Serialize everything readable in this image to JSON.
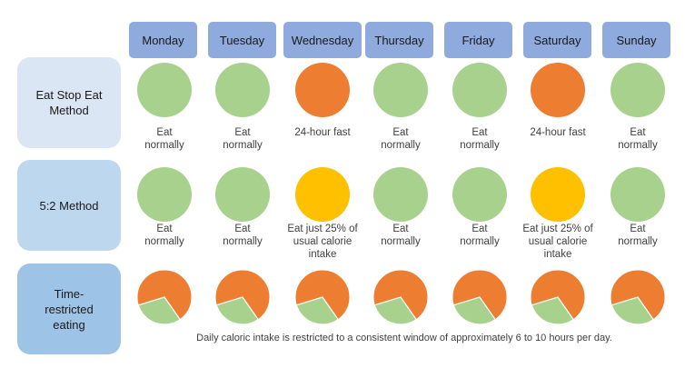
{
  "days": [
    "Monday",
    "Tuesday",
    "Wednesday",
    "Thursday",
    "Friday",
    "Saturday",
    "Sunday"
  ],
  "methods": [
    {
      "name": "Eat Stop Eat Method",
      "color": "#dae6f3"
    },
    {
      "name": "5:2 Method",
      "color": "#bdd7ee"
    },
    {
      "name": "Time-restricted eating",
      "color": "#9dc3e6"
    }
  ],
  "colors": {
    "normal": "#a9d18e",
    "fast": "#ed7d31",
    "reduced": "#ffc000",
    "day_header": "#8faadc"
  },
  "rows": [
    {
      "labels": [
        "Eat normally",
        "Eat normally",
        "24-hour fast",
        "Eat normally",
        "Eat normally",
        "24-hour fast",
        "Eat normally"
      ],
      "types": [
        "normal",
        "normal",
        "fast",
        "normal",
        "normal",
        "fast",
        "normal"
      ]
    },
    {
      "labels": [
        "Eat normally",
        "Eat normally",
        "Eat just 25% of usual calorie intake",
        "Eat normally",
        "Eat normally",
        "Eat just 25% of usual calorie intake",
        "Eat normally"
      ],
      "types": [
        "normal",
        "normal",
        "reduced",
        "normal",
        "normal",
        "reduced",
        "normal"
      ]
    }
  ],
  "time_restricted": {
    "eating_fraction_of_day": 0.3,
    "note": "Daily caloric intake is restricted to a consistent window of approximately 6 to 10 hours per day."
  }
}
